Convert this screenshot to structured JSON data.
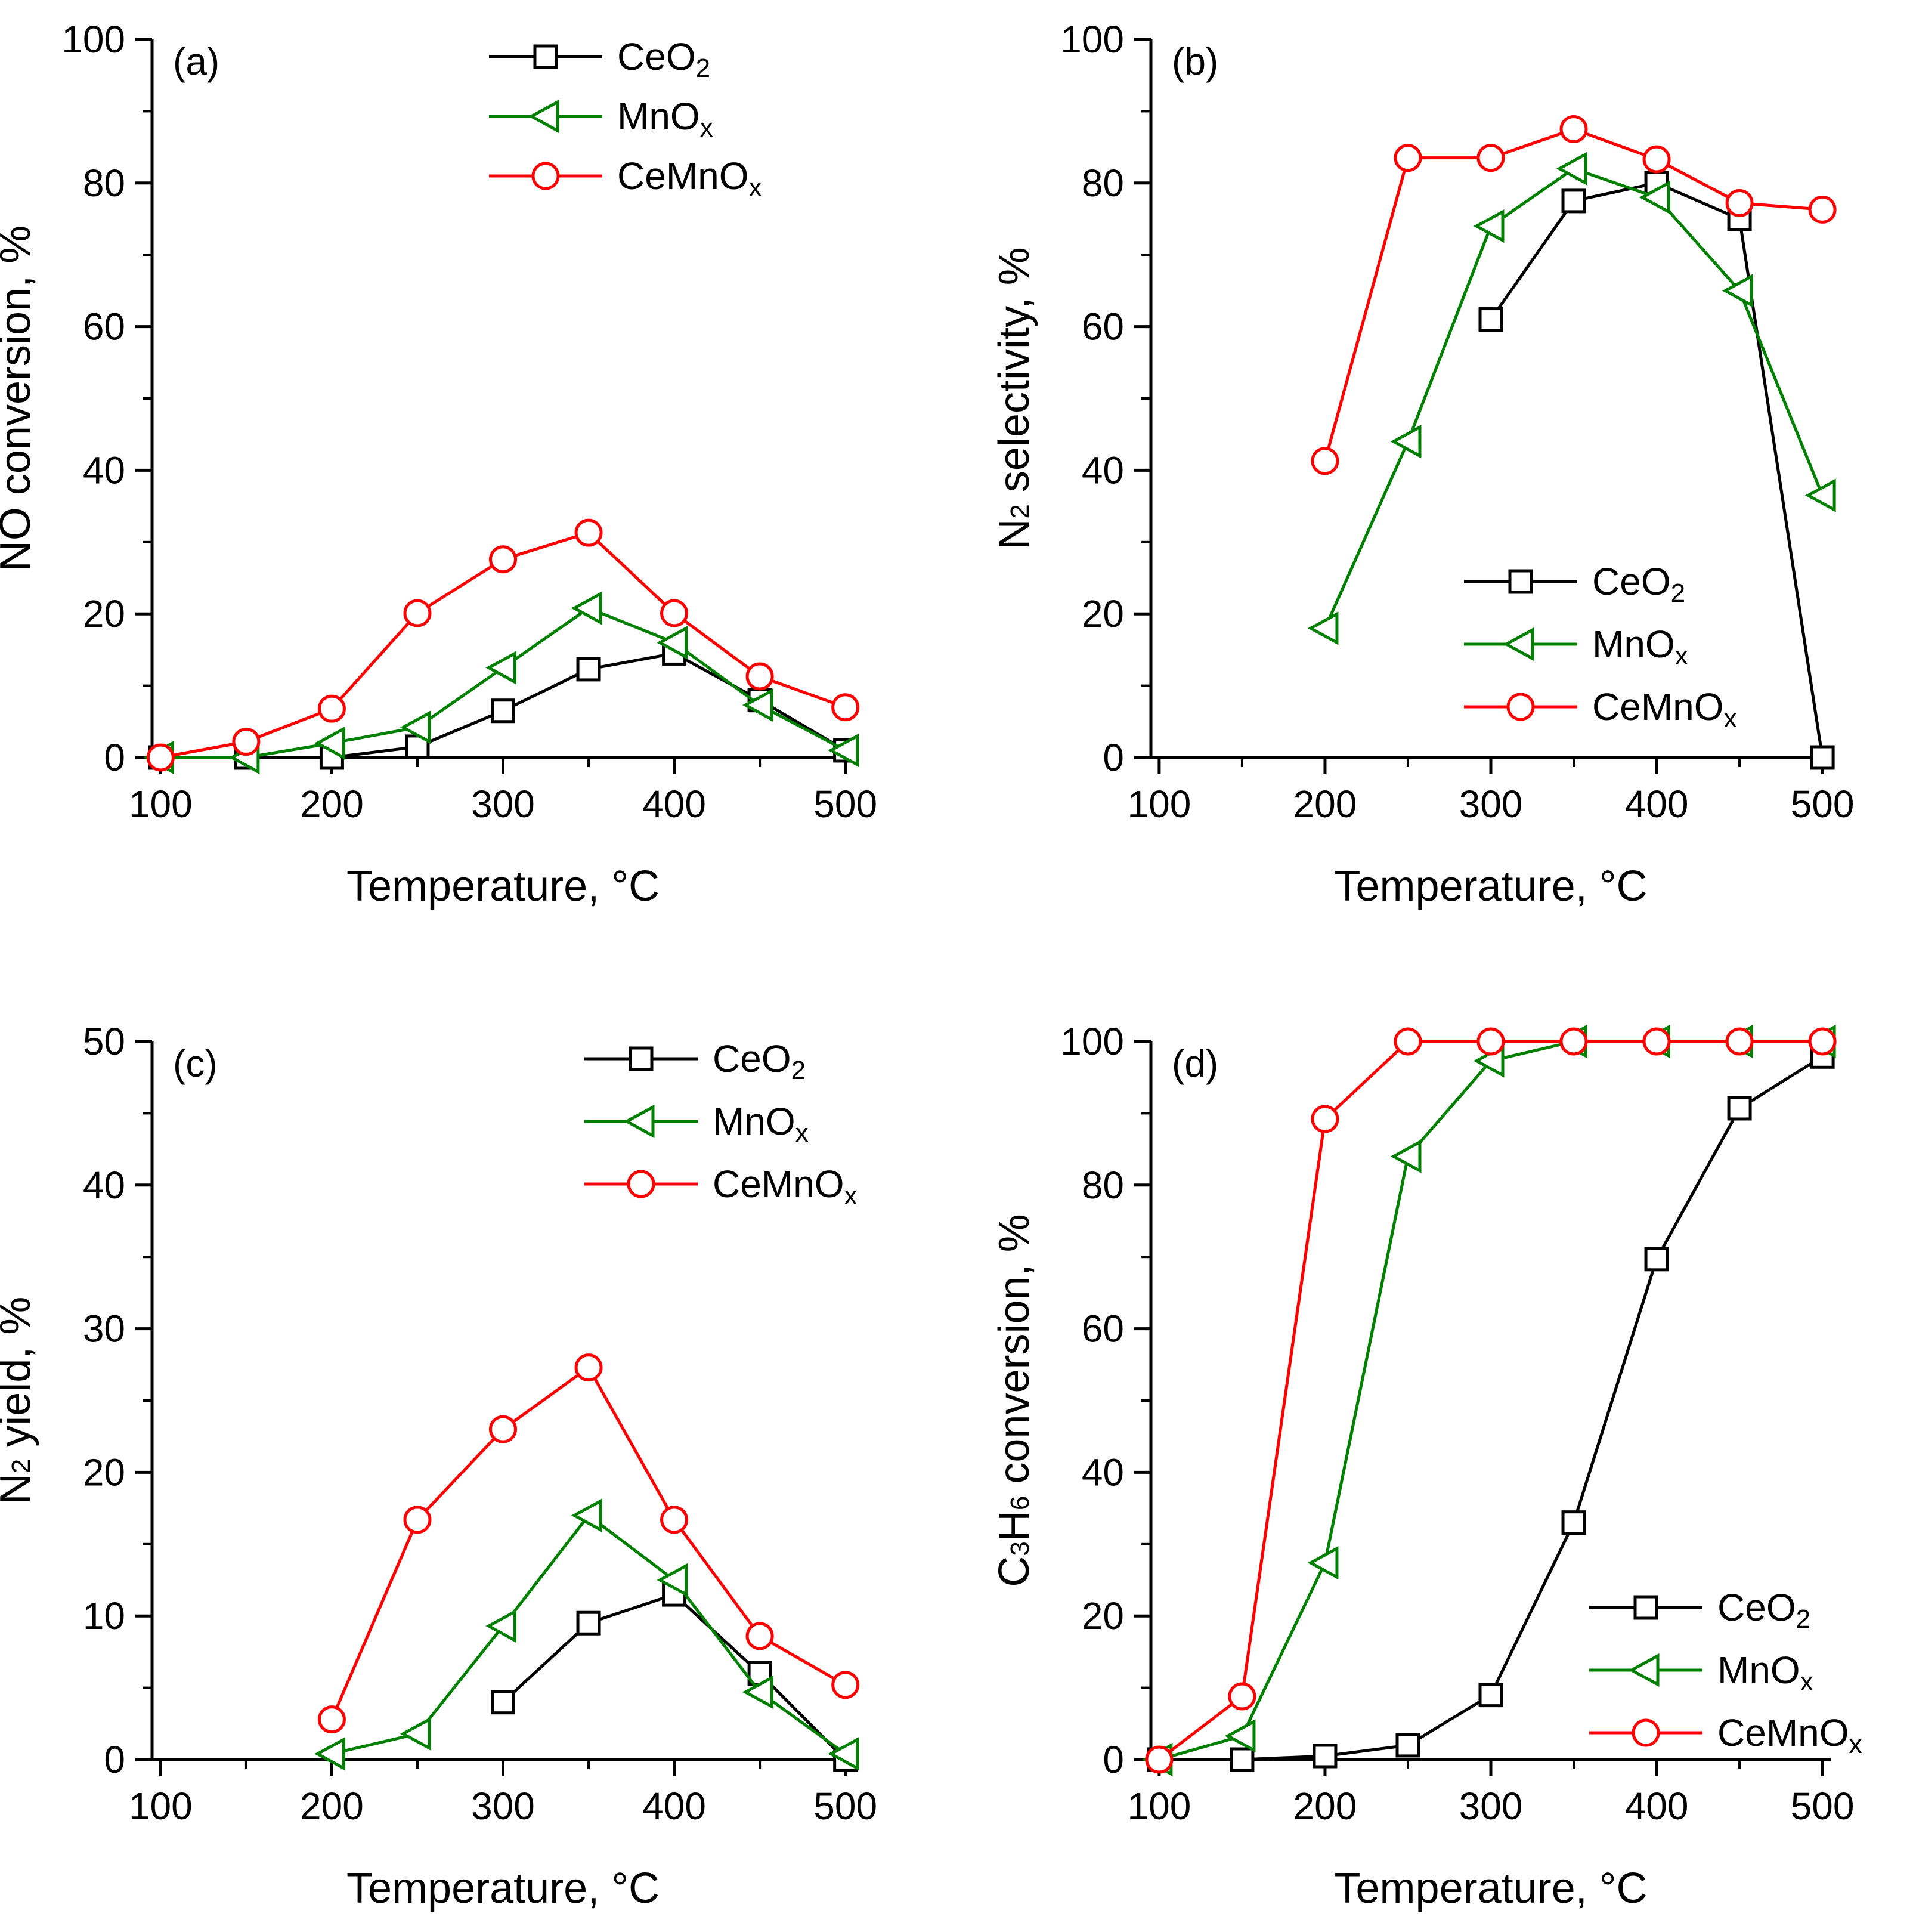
{
  "chart_data": [
    {
      "type": "line",
      "panel_label": "(a)",
      "title": "",
      "xlabel": "Temperature, °C",
      "ylabel": "NO conversion, %",
      "xlim": [
        95,
        505
      ],
      "ylim": [
        0,
        100
      ],
      "xticks": [
        100,
        200,
        300,
        400,
        500
      ],
      "yticks": [
        0,
        20,
        40,
        60,
        80,
        100
      ],
      "legend_position": "top-center",
      "series": [
        {
          "name": "CeO2",
          "name_main": "CeO",
          "name_sub": "2",
          "color": "#000000",
          "marker": "square",
          "x": [
            100,
            150,
            200,
            250,
            300,
            350,
            400,
            450,
            500
          ],
          "y": [
            0,
            0,
            0,
            1.5,
            6.5,
            12.3,
            14.5,
            8,
            1
          ]
        },
        {
          "name": "MnOx",
          "name_main": "MnO",
          "name_sub": "x",
          "color": "#008000",
          "marker": "triangle-left",
          "x": [
            100,
            150,
            200,
            250,
            300,
            350,
            400,
            450,
            500
          ],
          "y": [
            0,
            0,
            2,
            4.2,
            12.5,
            20.8,
            16,
            7.3,
            1
          ]
        },
        {
          "name": "CeMnOx",
          "name_main": "CeMnO",
          "name_sub": "x",
          "color": "#ff0000",
          "marker": "circle",
          "x": [
            100,
            150,
            200,
            250,
            300,
            350,
            400,
            450,
            500
          ],
          "y": [
            0,
            2.2,
            6.8,
            20.1,
            27.6,
            31.3,
            20.1,
            11.3,
            7
          ]
        }
      ]
    },
    {
      "type": "line",
      "panel_label": "(b)",
      "title": "",
      "xlabel": "Temperature, °C",
      "ylabel": "N2 selectivity, %",
      "ylabel_parts": [
        "N",
        "2",
        " selectivity, %"
      ],
      "xlim": [
        95,
        505
      ],
      "ylim": [
        0,
        100
      ],
      "xticks": [
        100,
        200,
        300,
        400,
        500
      ],
      "yticks": [
        0,
        20,
        40,
        60,
        80,
        100
      ],
      "legend_position": "bottom-right",
      "series": [
        {
          "name": "CeO2",
          "name_main": "CeO",
          "name_sub": "2",
          "color": "#000000",
          "marker": "square",
          "x": [
            300,
            350,
            400,
            450,
            500
          ],
          "y": [
            61,
            77.5,
            80,
            75,
            0
          ]
        },
        {
          "name": "MnOx",
          "name_main": "MnO",
          "name_sub": "x",
          "color": "#008000",
          "marker": "triangle-left",
          "x": [
            200,
            250,
            300,
            350,
            400,
            450,
            500
          ],
          "y": [
            18,
            44,
            74,
            82,
            78,
            65,
            36.5
          ]
        },
        {
          "name": "CeMnOx",
          "name_main": "CeMnO",
          "name_sub": "x",
          "color": "#ff0000",
          "marker": "circle",
          "x": [
            200,
            250,
            300,
            350,
            400,
            450,
            500
          ],
          "y": [
            41.3,
            83.5,
            83.5,
            87.5,
            83.3,
            77.2,
            76.3
          ]
        }
      ]
    },
    {
      "type": "line",
      "panel_label": "(c)",
      "title": "",
      "xlabel": "Temperature, °C",
      "ylabel": "N2 yield, %",
      "ylabel_parts": [
        "N",
        "2",
        " yield, %"
      ],
      "xlim": [
        95,
        505
      ],
      "ylim": [
        0,
        50
      ],
      "xticks": [
        100,
        200,
        300,
        400,
        500
      ],
      "yticks": [
        0,
        10,
        20,
        30,
        40,
        50
      ],
      "legend_position": "top-right",
      "series": [
        {
          "name": "CeO2",
          "name_main": "CeO",
          "name_sub": "2",
          "color": "#000000",
          "marker": "square",
          "x": [
            300,
            350,
            400,
            450,
            500
          ],
          "y": [
            4,
            9.5,
            11.5,
            6,
            0
          ]
        },
        {
          "name": "MnOx",
          "name_main": "MnO",
          "name_sub": "x",
          "color": "#008000",
          "marker": "triangle-left",
          "x": [
            200,
            250,
            300,
            350,
            400,
            450,
            500
          ],
          "y": [
            0.4,
            1.8,
            9.3,
            17,
            12.5,
            4.7,
            0.4
          ]
        },
        {
          "name": "CeMnOx",
          "name_main": "CeMnO",
          "name_sub": "x",
          "color": "#ff0000",
          "marker": "circle",
          "x": [
            200,
            250,
            300,
            350,
            400,
            450,
            500
          ],
          "y": [
            2.8,
            16.7,
            23,
            27.3,
            16.7,
            8.6,
            5.2
          ]
        }
      ]
    },
    {
      "type": "line",
      "panel_label": "(d)",
      "title": "",
      "xlabel": "Temperature, °C",
      "ylabel": "C3H6 conversion, %",
      "ylabel_parts": [
        "C",
        "3",
        "H",
        "6",
        " conversion, %"
      ],
      "xlim": [
        95,
        505
      ],
      "ylim": [
        0,
        100
      ],
      "xticks": [
        100,
        200,
        300,
        400,
        500
      ],
      "yticks": [
        0,
        20,
        40,
        60,
        80,
        100
      ],
      "legend_position": "bottom-right",
      "series": [
        {
          "name": "CeO2",
          "name_main": "CeO",
          "name_sub": "2",
          "color": "#000000",
          "marker": "square",
          "x": [
            100,
            150,
            200,
            250,
            300,
            350,
            400,
            450,
            500
          ],
          "y": [
            0,
            0,
            0.5,
            2,
            9,
            33,
            69.7,
            90.7,
            97.9
          ]
        },
        {
          "name": "MnOx",
          "name_main": "MnO",
          "name_sub": "x",
          "color": "#008000",
          "marker": "triangle-left",
          "x": [
            100,
            150,
            200,
            250,
            300,
            350,
            400,
            450,
            500
          ],
          "y": [
            0,
            3.3,
            27.4,
            84,
            97.3,
            100,
            100,
            100,
            100
          ]
        },
        {
          "name": "CeMnOx",
          "name_main": "CeMnO",
          "name_sub": "x",
          "color": "#ff0000",
          "marker": "circle",
          "x": [
            100,
            150,
            200,
            250,
            300,
            350,
            400,
            450,
            500
          ],
          "y": [
            0,
            8.8,
            89.2,
            100,
            100,
            100,
            100,
            100,
            100
          ]
        }
      ]
    }
  ]
}
